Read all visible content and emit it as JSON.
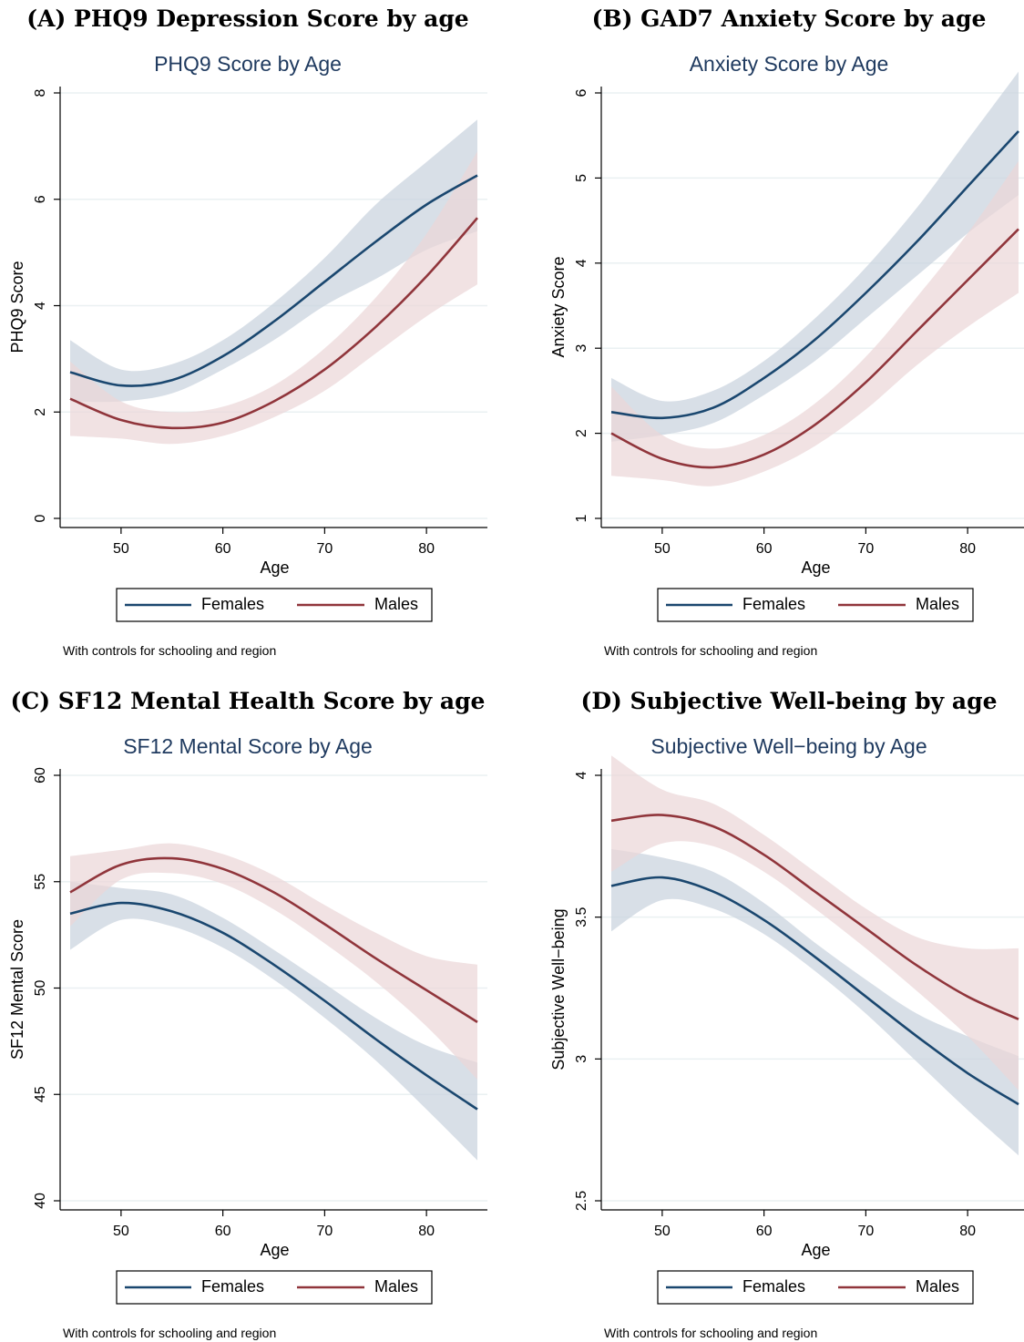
{
  "colors": {
    "females": "#1a476f",
    "females_band": "#c9d3de",
    "males": "#90353b",
    "males_band": "#ecd7d8",
    "chart_title": "#1f3a5f",
    "gridline": "#eaf0f2"
  },
  "legend": {
    "females_label": "Females",
    "males_label": "Males"
  },
  "chart_data": [
    {
      "type": "line",
      "panel_title": "(A) PHQ9 Depression Score by age",
      "title": "PHQ9 Score by Age",
      "xlabel": "Age",
      "ylabel": "PHQ9 Score",
      "note": "With controls for schooling and region",
      "xlim": [
        45,
        85
      ],
      "ylim": [
        0,
        8
      ],
      "xticks": [
        50,
        60,
        70,
        80
      ],
      "yticks": [
        0,
        2,
        4,
        6,
        8
      ],
      "grid": true,
      "legend_position": "bottom",
      "x": [
        45,
        50,
        55,
        60,
        65,
        70,
        75,
        80,
        85
      ],
      "series": [
        {
          "name": "Females",
          "color_key": "females",
          "values": [
            2.75,
            2.5,
            2.6,
            3.05,
            3.7,
            4.45,
            5.2,
            5.9,
            6.45
          ],
          "lower": [
            2.2,
            2.2,
            2.35,
            2.8,
            3.35,
            4.0,
            4.5,
            5.05,
            5.4
          ],
          "upper": [
            3.35,
            2.8,
            2.9,
            3.35,
            4.05,
            4.9,
            5.9,
            6.7,
            7.5
          ]
        },
        {
          "name": "Males",
          "color_key": "males",
          "values": [
            2.25,
            1.85,
            1.7,
            1.8,
            2.2,
            2.8,
            3.6,
            4.55,
            5.65
          ],
          "lower": [
            1.55,
            1.5,
            1.4,
            1.55,
            1.9,
            2.4,
            3.1,
            3.8,
            4.4
          ],
          "upper": [
            2.95,
            2.2,
            2.0,
            2.1,
            2.5,
            3.2,
            4.15,
            5.35,
            6.9
          ]
        }
      ]
    },
    {
      "type": "line",
      "panel_title": "(B) GAD7 Anxiety Score by age",
      "title": "Anxiety Score by Age",
      "xlabel": "Age",
      "ylabel": "Anxiety Score",
      "note": "With controls for schooling and region",
      "xlim": [
        45,
        85
      ],
      "ylim": [
        1,
        6
      ],
      "xticks": [
        50,
        60,
        70,
        80
      ],
      "yticks": [
        1,
        2,
        3,
        4,
        5,
        6
      ],
      "grid": true,
      "legend_position": "bottom",
      "x": [
        45,
        50,
        55,
        60,
        65,
        70,
        75,
        80,
        85
      ],
      "series": [
        {
          "name": "Females",
          "color_key": "females",
          "values": [
            2.25,
            2.18,
            2.3,
            2.65,
            3.1,
            3.65,
            4.25,
            4.9,
            5.55
          ],
          "lower": [
            1.9,
            1.98,
            2.12,
            2.45,
            2.85,
            3.35,
            3.85,
            4.35,
            4.8
          ],
          "upper": [
            2.65,
            2.38,
            2.5,
            2.85,
            3.35,
            3.95,
            4.65,
            5.45,
            6.25
          ]
        },
        {
          "name": "Males",
          "color_key": "males",
          "values": [
            2.0,
            1.7,
            1.6,
            1.75,
            2.1,
            2.6,
            3.2,
            3.8,
            4.4
          ],
          "lower": [
            1.5,
            1.45,
            1.38,
            1.55,
            1.85,
            2.28,
            2.8,
            3.25,
            3.65
          ],
          "upper": [
            2.55,
            1.98,
            1.82,
            1.98,
            2.35,
            2.9,
            3.6,
            4.35,
            5.2
          ]
        }
      ]
    },
    {
      "type": "line",
      "panel_title": "(C) SF12 Mental Health Score by age",
      "title": "SF12 Mental Score by Age",
      "xlabel": "Age",
      "ylabel": "SF12 Mental Score",
      "note": "With controls for schooling and region",
      "xlim": [
        45,
        85
      ],
      "ylim": [
        40,
        60
      ],
      "xticks": [
        50,
        60,
        70,
        80
      ],
      "yticks": [
        40,
        45,
        50,
        55,
        60
      ],
      "grid": true,
      "legend_position": "bottom",
      "x": [
        45,
        50,
        55,
        60,
        65,
        70,
        75,
        80,
        85
      ],
      "series": [
        {
          "name": "Females",
          "color_key": "females",
          "values": [
            53.5,
            54.0,
            53.6,
            52.6,
            51.1,
            49.4,
            47.6,
            45.9,
            44.3
          ],
          "lower": [
            51.8,
            53.2,
            52.9,
            51.9,
            50.4,
            48.6,
            46.6,
            44.3,
            41.9
          ],
          "upper": [
            55.0,
            54.7,
            54.4,
            53.3,
            51.8,
            50.2,
            48.6,
            47.3,
            46.5
          ]
        },
        {
          "name": "Males",
          "color_key": "males",
          "values": [
            54.5,
            55.8,
            56.1,
            55.6,
            54.5,
            53.0,
            51.4,
            49.9,
            48.4
          ],
          "lower": [
            52.9,
            55.1,
            55.4,
            54.9,
            53.7,
            52.1,
            50.3,
            48.2,
            45.7
          ],
          "upper": [
            56.2,
            56.5,
            56.8,
            56.3,
            55.3,
            53.9,
            52.6,
            51.5,
            51.1
          ]
        }
      ]
    },
    {
      "type": "line",
      "panel_title": "(D) Subjective Well-being by age",
      "title": "Subjective Well−being by Age",
      "xlabel": "Age",
      "ylabel": "Subjective Well−being",
      "note": "With controls for schooling and region",
      "xlim": [
        45,
        85
      ],
      "ylim": [
        2.5,
        4
      ],
      "xticks": [
        50,
        60,
        70,
        80
      ],
      "yticks": [
        2.5,
        3,
        3.5,
        4
      ],
      "grid": true,
      "legend_position": "bottom",
      "x": [
        45,
        50,
        55,
        60,
        65,
        70,
        75,
        80,
        85
      ],
      "series": [
        {
          "name": "Females",
          "color_key": "females",
          "values": [
            3.61,
            3.64,
            3.59,
            3.49,
            3.36,
            3.22,
            3.08,
            2.95,
            2.84
          ],
          "lower": [
            3.45,
            3.56,
            3.53,
            3.44,
            3.31,
            3.16,
            2.99,
            2.82,
            2.66
          ],
          "upper": [
            3.74,
            3.71,
            3.66,
            3.55,
            3.41,
            3.28,
            3.16,
            3.08,
            3.01
          ]
        },
        {
          "name": "Males",
          "color_key": "males",
          "values": [
            3.84,
            3.86,
            3.82,
            3.72,
            3.59,
            3.46,
            3.33,
            3.22,
            3.14
          ],
          "lower": [
            3.66,
            3.76,
            3.75,
            3.66,
            3.53,
            3.39,
            3.24,
            3.08,
            2.89
          ],
          "upper": [
            4.07,
            3.95,
            3.9,
            3.79,
            3.66,
            3.53,
            3.43,
            3.39,
            3.39
          ]
        }
      ]
    }
  ]
}
